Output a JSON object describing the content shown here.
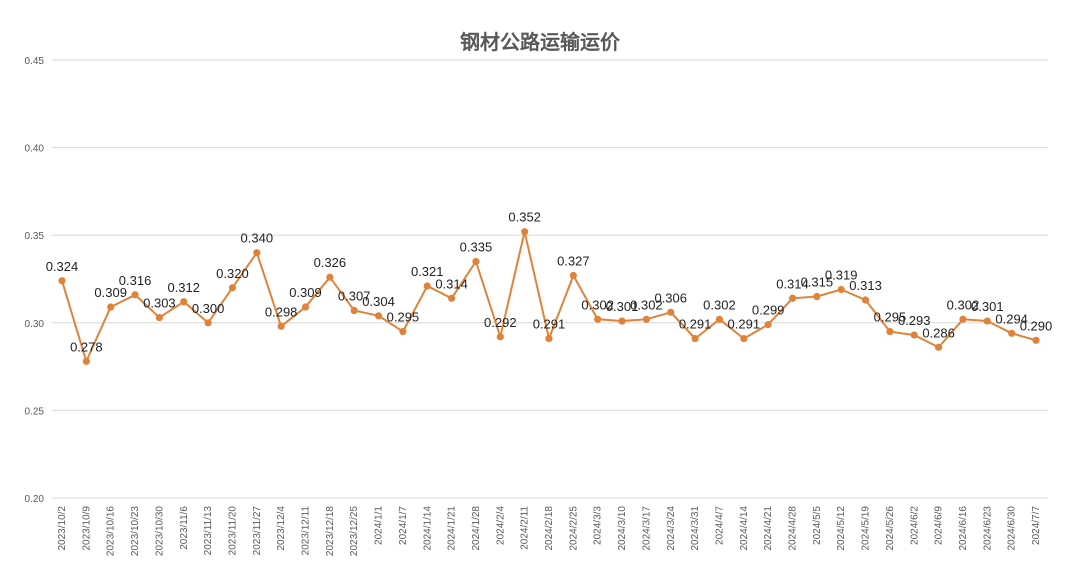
{
  "chart_data": {
    "type": "line",
    "title": "钢材公路运输运价",
    "xlabel": "",
    "ylabel": "",
    "ylim": [
      0.2,
      0.45
    ],
    "yticks": [
      "0.20",
      "0.25",
      "0.30",
      "0.35",
      "0.40",
      "0.45"
    ],
    "grid": true,
    "color": "#e0833a",
    "categories": [
      "2023/10/2",
      "2023/10/9",
      "2023/10/16",
      "2023/10/23",
      "2023/10/30",
      "2023/11/6",
      "2023/11/13",
      "2023/11/20",
      "2023/11/27",
      "2023/12/4",
      "2023/12/11",
      "2023/12/18",
      "2023/12/25",
      "2024/1/1",
      "2024/1/7",
      "2024/1/14",
      "2024/1/21",
      "2024/1/28",
      "2024/2/4",
      "2024/2/11",
      "2024/2/18",
      "2024/2/25",
      "2024/3/3",
      "2024/3/10",
      "2024/3/17",
      "2024/3/24",
      "2024/3/31",
      "2024/4/7",
      "2024/4/14",
      "2024/4/21",
      "2024/4/28",
      "2024/5/5",
      "2024/5/12",
      "2024/5/19",
      "2024/5/26",
      "2024/6/2",
      "2024/6/9",
      "2024/6/16",
      "2024/6/23",
      "2024/6/30",
      "2024/7/7"
    ],
    "values": [
      0.324,
      0.278,
      0.309,
      0.316,
      0.303,
      0.312,
      0.3,
      0.32,
      0.34,
      0.298,
      0.309,
      0.326,
      0.307,
      0.304,
      0.295,
      0.321,
      0.314,
      0.335,
      0.292,
      0.352,
      0.291,
      0.327,
      0.302,
      0.301,
      0.302,
      0.306,
      0.291,
      0.302,
      0.291,
      0.299,
      0.314,
      0.315,
      0.319,
      0.313,
      0.295,
      0.293,
      0.286,
      0.302,
      0.301,
      0.294,
      0.29
    ],
    "labels": [
      "0.324",
      "0.278",
      "0.309",
      "0.316",
      "0.303",
      "0.312",
      "0.300",
      "0.320",
      "0.340",
      "0.298",
      "0.309",
      "0.326",
      "0.307",
      "0.304",
      "0.295",
      "0.321",
      "0.314",
      "0.335",
      "0.292",
      "0.352",
      "0.291",
      "0.327",
      "0.302",
      "0.301",
      "0.302",
      "0.306",
      "0.291",
      "0.302",
      "0.291",
      "0.299",
      "0.314",
      "0.315",
      "0.319",
      "0.313",
      "0.295",
      "0.293",
      "0.286",
      "0.302",
      "0.301",
      "0.294",
      "0.290"
    ]
  }
}
